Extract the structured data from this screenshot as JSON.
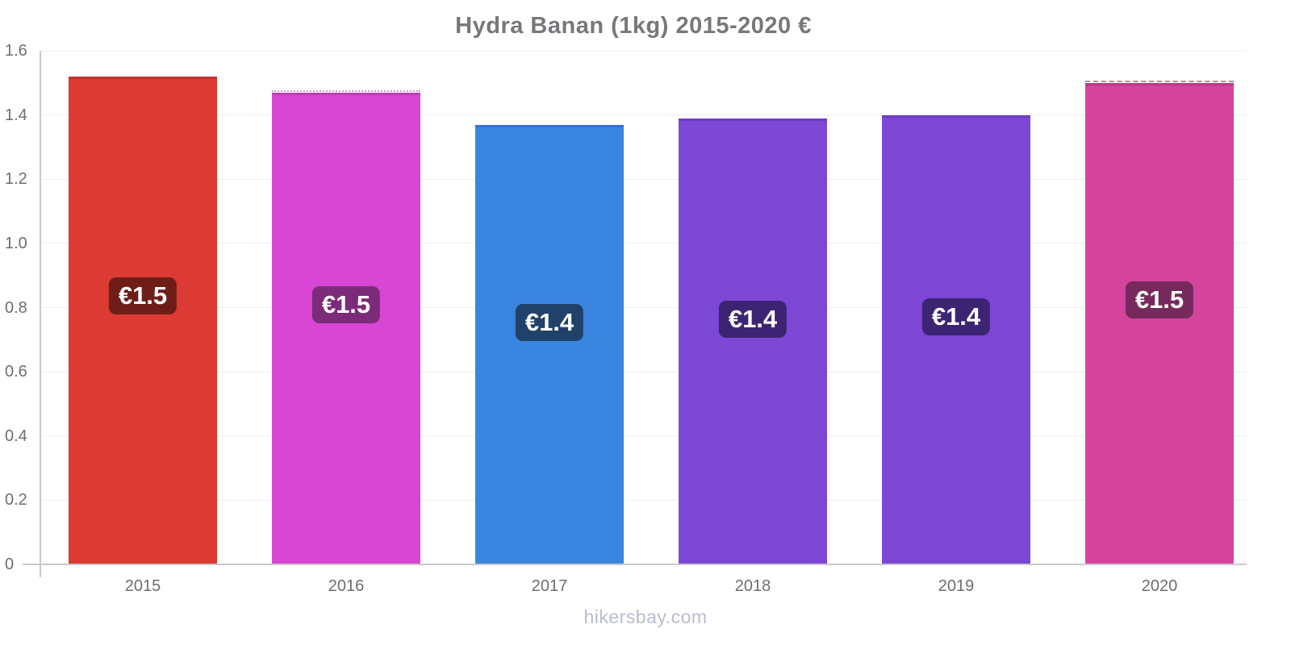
{
  "title": "Hydra Banan (1kg) 2015-2020 €",
  "footer": "hikersbay.com",
  "chart_data": {
    "type": "bar",
    "title": "Hydra Banan (1kg) 2015-2020 €",
    "xlabel": "",
    "ylabel": "",
    "categories": [
      "2015",
      "2016",
      "2017",
      "2018",
      "2019",
      "2020"
    ],
    "values": [
      1.52,
      1.47,
      1.37,
      1.39,
      1.4,
      1.5
    ],
    "value_labels": [
      "€1.5",
      "€1.5",
      "€1.4",
      "€1.4",
      "€1.4",
      "€1.5"
    ],
    "ylim": [
      0,
      1.6
    ],
    "yticks": [
      0,
      0.2,
      0.4,
      0.6,
      0.8,
      1.0,
      1.2,
      1.4,
      1.6
    ],
    "ytick_labels": [
      "0",
      "0.2",
      "0.4",
      "0.6",
      "0.8",
      "1.0",
      "1.2",
      "1.4",
      "1.6"
    ],
    "grid": true,
    "legend": false,
    "bars": [
      {
        "color": "#dc3a32",
        "cap_color": "#c5322c",
        "badge_color": "#6e1d18",
        "top_edge": "none"
      },
      {
        "color": "#d747d3",
        "cap_color": "#bf3cba",
        "badge_color": "#7c2b7a",
        "top_edge": "dotted"
      },
      {
        "color": "#3a85de",
        "cap_color": "#2f74c8",
        "badge_color": "#20416a",
        "top_edge": "none"
      },
      {
        "color": "#7d47d6",
        "cap_color": "#6d3bc2",
        "badge_color": "#3d2473",
        "top_edge": "none"
      },
      {
        "color": "#7d47d6",
        "cap_color": "#6d3bc2",
        "badge_color": "#3d2473",
        "top_edge": "none"
      },
      {
        "color": "#d4449c",
        "cap_color": "#bc3989",
        "badge_color": "#752a5b",
        "top_edge": "dashed"
      }
    ],
    "style_colors": {
      "title": "#77787b",
      "axis": "#c9c9cc",
      "tick_label": "#6d6e71",
      "grid": "#efeff2",
      "badge_text": "#ffffff",
      "footer": "#b9bccf",
      "top_edge_dash": "#9a9aa8",
      "top_edge_dot": "#c9a0c6"
    }
  }
}
